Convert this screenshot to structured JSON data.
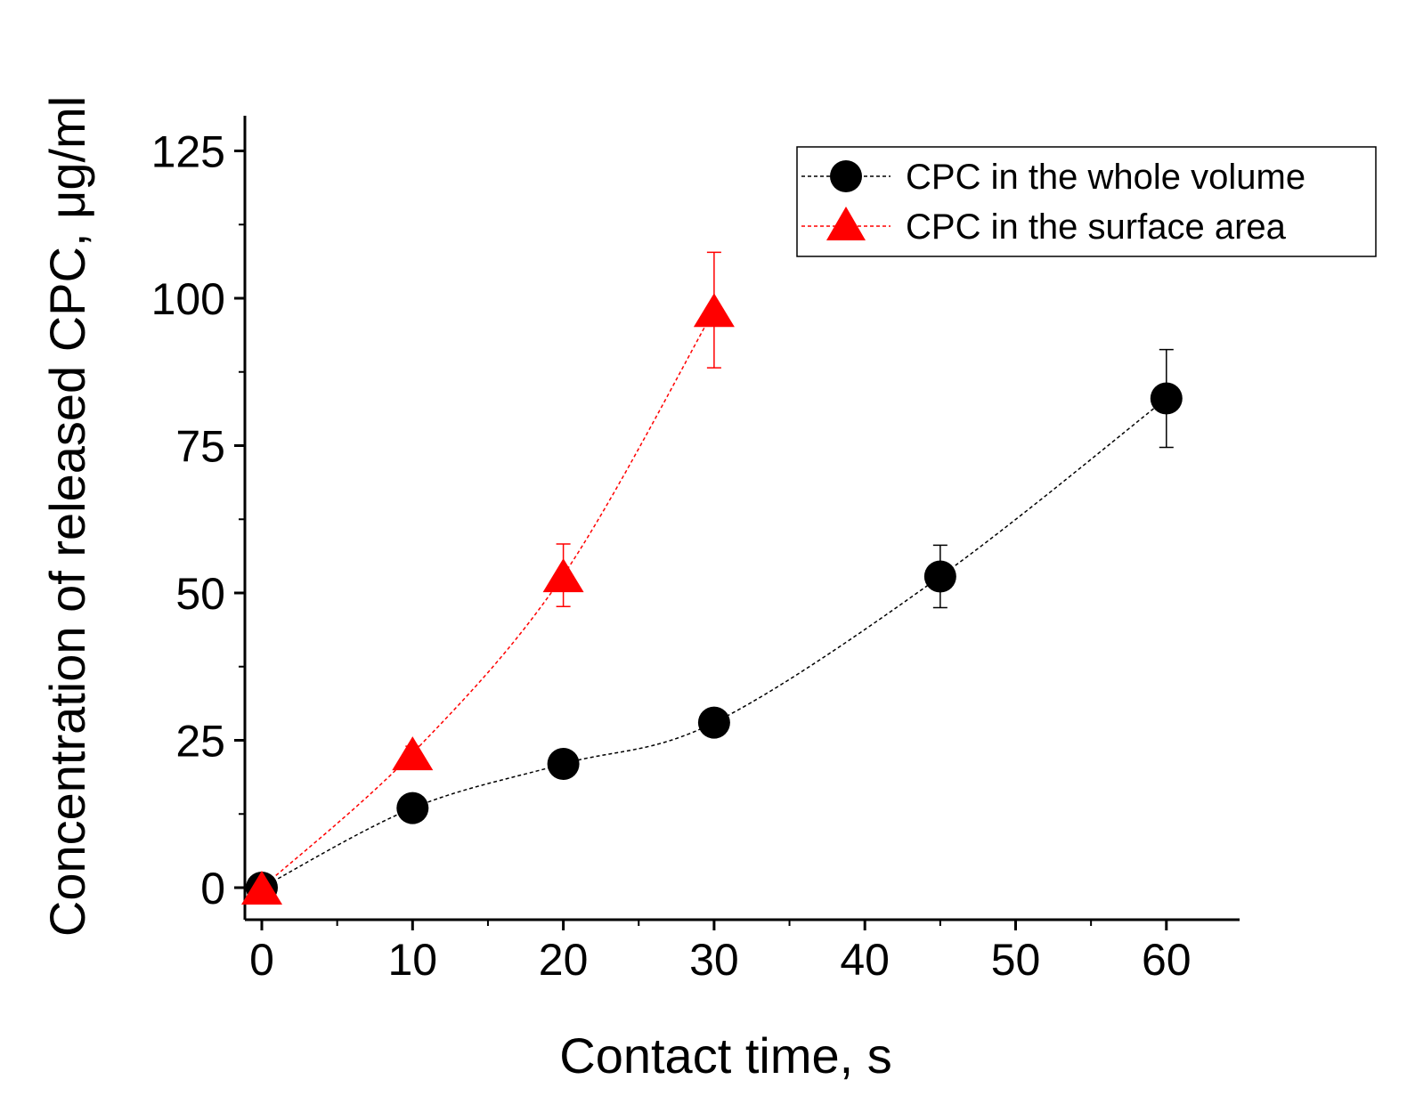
{
  "chart_data": {
    "type": "scatter",
    "xlabel": "Contact time, s",
    "ylabel": "Concentration of released CPC, μg/ml",
    "xlim": [
      -1,
      65
    ],
    "ylim": [
      -5,
      130
    ],
    "x_ticks": [
      0,
      10,
      20,
      30,
      40,
      50,
      60
    ],
    "y_ticks": [
      0,
      25,
      50,
      75,
      100,
      125
    ],
    "series": [
      {
        "name": "CPC in the whole volume",
        "color": "#000000",
        "marker": "circle",
        "x": [
          0,
          10,
          20,
          30,
          45,
          60
        ],
        "y": [
          0,
          13.5,
          21,
          28,
          52.8,
          83
        ],
        "err": [
          0,
          0,
          0,
          0,
          5.3,
          8.3
        ]
      },
      {
        "name": "CPC in the surface area",
        "color": "#ff0000",
        "marker": "triangle",
        "x": [
          0,
          10,
          20,
          30
        ],
        "y": [
          0,
          22.8,
          53,
          98
        ],
        "err": [
          0,
          1.2,
          5.3,
          9.8
        ]
      }
    ],
    "legend_position": "top-right"
  }
}
